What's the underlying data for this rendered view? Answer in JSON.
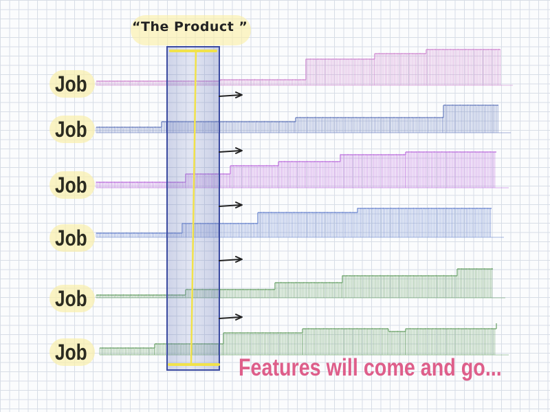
{
  "header": {
    "title": "“The Product ”"
  },
  "jobs": [
    {
      "label": "Job",
      "color": "#cf8bd0"
    },
    {
      "label": "Job",
      "color": "#6a7fbf"
    },
    {
      "label": "Job",
      "color": "#bd72dd"
    },
    {
      "label": "Job",
      "color": "#6e88cf"
    },
    {
      "label": "Job",
      "color": "#6da36c"
    },
    {
      "label": "Job",
      "color": "#6ea36c"
    }
  ],
  "caption": "Features will come and go...",
  "colors": {
    "highlighter": "#f6ec9a",
    "product_box": "#3a4aa0",
    "yellow_line": "#f1e24a",
    "caption": "#de5e8a",
    "label": "#2b2b20"
  }
}
